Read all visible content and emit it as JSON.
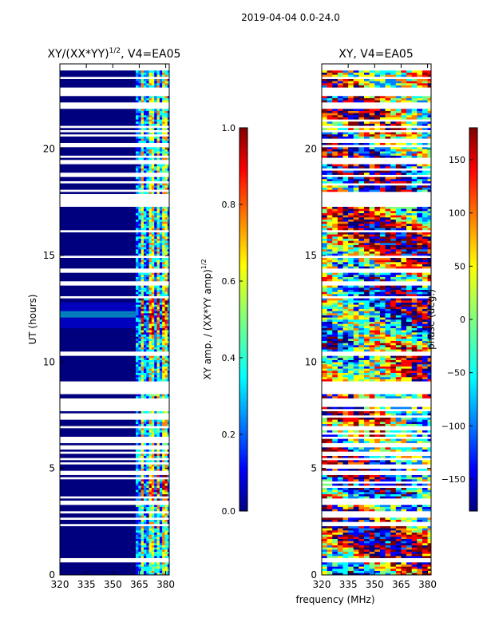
{
  "suptitle": "2019-04-04 0.0-24.0",
  "chart_data": [
    {
      "type": "heatmap",
      "title_main": "XY/(XX*YY)",
      "title_exp": "1/2",
      "title_rest": ", V4=EA05",
      "xlabel": "",
      "ylabel": "UT (hours)",
      "xlim": [
        320,
        382
      ],
      "ylim": [
        0,
        24
      ],
      "xticks": [
        320,
        335,
        350,
        365,
        380
      ],
      "yticks": [
        0,
        5,
        10,
        15,
        20
      ],
      "colorbar": {
        "label_main": "XY amp. / (XX*YY amp)",
        "label_exp": "1/2",
        "range": [
          0.0,
          1.0
        ],
        "ticks": [
          "0.0",
          "0.2",
          "0.4",
          "0.6",
          "0.8",
          "1.0"
        ],
        "tick_values": [
          0.0,
          0.2,
          0.4,
          0.6,
          0.8,
          1.0
        ],
        "colormap": "jet"
      }
    },
    {
      "type": "heatmap",
      "title": "XY, V4=EA05",
      "xlabel": "frequency (MHz)",
      "ylabel": "",
      "xlim": [
        320,
        382
      ],
      "ylim": [
        0,
        24
      ],
      "xticks": [
        320,
        335,
        350,
        365,
        380
      ],
      "yticks": [
        0,
        5,
        10,
        15,
        20
      ],
      "colorbar": {
        "label": "phase (deg.)",
        "range": [
          -180,
          180
        ],
        "ticks": [
          "150",
          "100",
          "50",
          "0",
          "−50",
          "−100",
          "−150"
        ],
        "tick_values": [
          150,
          100,
          50,
          0,
          -50,
          -100,
          -150
        ],
        "colormap": "jet"
      }
    }
  ],
  "colors": {
    "jet": [
      "#00007f",
      "#0000ff",
      "#007fff",
      "#00ffff",
      "#7fff7f",
      "#ffff00",
      "#ff7f00",
      "#ff0000",
      "#7f0000"
    ],
    "axis": "#000000",
    "background": "#ffffff"
  }
}
